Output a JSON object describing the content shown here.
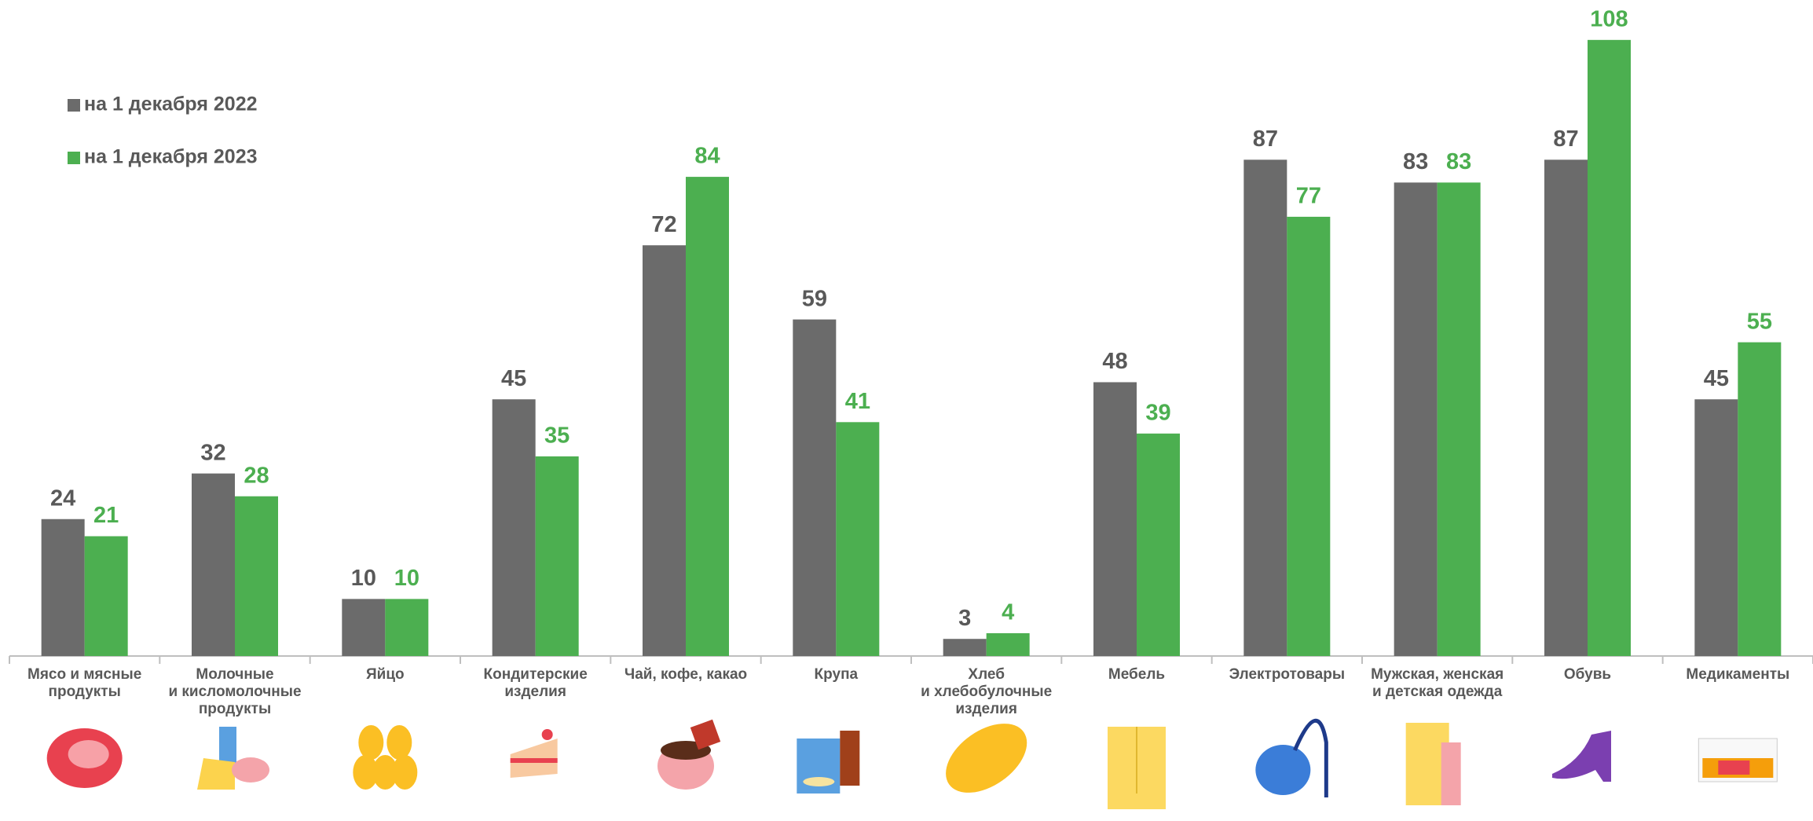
{
  "chart_data": {
    "type": "bar",
    "categories": [
      "Мясо и мясные\nпродукты",
      "Молочные\nи кисломолочные\nпродукты",
      "Яйцо",
      "Кондитерские\nизделия",
      "Чай, кофе, какао",
      "Крупа",
      "Хлеб\nи хлебобулочные\nизделия",
      "Мебель",
      "Электротовары",
      "Мужская, женская\nи детская одежда",
      "Обувь",
      "Медикаменты"
    ],
    "series": [
      {
        "name": "на 1 декабря 2022",
        "color": "#6b6b6b",
        "label_color": "#595959",
        "values": [
          24,
          32,
          10,
          45,
          72,
          59,
          3,
          48,
          87,
          83,
          87,
          45
        ]
      },
      {
        "name": "на 1 декабря 2023",
        "color": "#4caf50",
        "label_color": "#4caf50",
        "values": [
          21,
          28,
          10,
          35,
          84,
          41,
          4,
          39,
          77,
          83,
          108,
          55
        ]
      }
    ],
    "ylim": [
      0,
      115
    ],
    "legend": "upper left"
  }
}
